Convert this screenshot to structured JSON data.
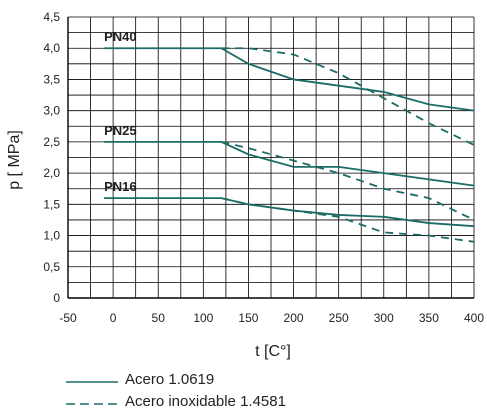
{
  "chart_data": {
    "type": "line",
    "xlabel": "t [C°]",
    "ylabel": "p [ MPa]",
    "xlim": [
      -50,
      400
    ],
    "ylim": [
      0,
      4.5
    ],
    "x_ticks": [
      "-50",
      "0",
      "50",
      "100",
      "150",
      "200",
      "250",
      "300",
      "350",
      "400"
    ],
    "y_ticks": [
      "0",
      "0,5",
      "1,0",
      "1,5",
      "2,0",
      "2,5",
      "3,0",
      "3,5",
      "4,0",
      "4,5"
    ],
    "grid": true,
    "line_color": "#1b6b66",
    "legend_position": "bottom-left",
    "legend": [
      {
        "label": "Acero 1.0619",
        "style": "solid"
      },
      {
        "label": "Acero inoxidable 1.4581",
        "style": "dashed"
      }
    ],
    "series": [
      {
        "group": "PN40",
        "style": "solid",
        "x": [
          -10,
          120,
          150,
          200,
          250,
          300,
          350,
          400
        ],
        "y": [
          4.0,
          4.0,
          3.75,
          3.5,
          3.4,
          3.3,
          3.1,
          3.0
        ]
      },
      {
        "group": "PN40",
        "style": "dashed",
        "x": [
          120,
          150,
          200,
          250,
          300,
          350,
          400
        ],
        "y": [
          4.0,
          4.0,
          3.9,
          3.6,
          3.2,
          2.8,
          2.45
        ]
      },
      {
        "group": "PN25",
        "style": "solid",
        "x": [
          -10,
          120,
          150,
          200,
          250,
          300,
          350,
          400
        ],
        "y": [
          2.5,
          2.5,
          2.3,
          2.1,
          2.1,
          2.0,
          1.9,
          1.8
        ]
      },
      {
        "group": "PN25",
        "style": "dashed",
        "x": [
          120,
          150,
          200,
          250,
          300,
          350,
          400
        ],
        "y": [
          2.5,
          2.4,
          2.2,
          2.0,
          1.75,
          1.6,
          1.25
        ]
      },
      {
        "group": "PN16",
        "style": "solid",
        "x": [
          -10,
          120,
          150,
          200,
          250,
          300,
          350,
          400
        ],
        "y": [
          1.6,
          1.6,
          1.5,
          1.4,
          1.33,
          1.3,
          1.2,
          1.15
        ]
      },
      {
        "group": "PN16",
        "style": "dashed",
        "x": [
          120,
          150,
          200,
          250,
          300,
          350,
          400
        ],
        "y": [
          1.6,
          1.5,
          1.4,
          1.3,
          1.05,
          1.0,
          0.9
        ]
      }
    ],
    "annotations": [
      {
        "text": "PN40",
        "x": -10,
        "y": 4.0
      },
      {
        "text": "PN25",
        "x": -10,
        "y": 2.5
      },
      {
        "text": "PN16",
        "x": -10,
        "y": 1.6
      }
    ]
  }
}
